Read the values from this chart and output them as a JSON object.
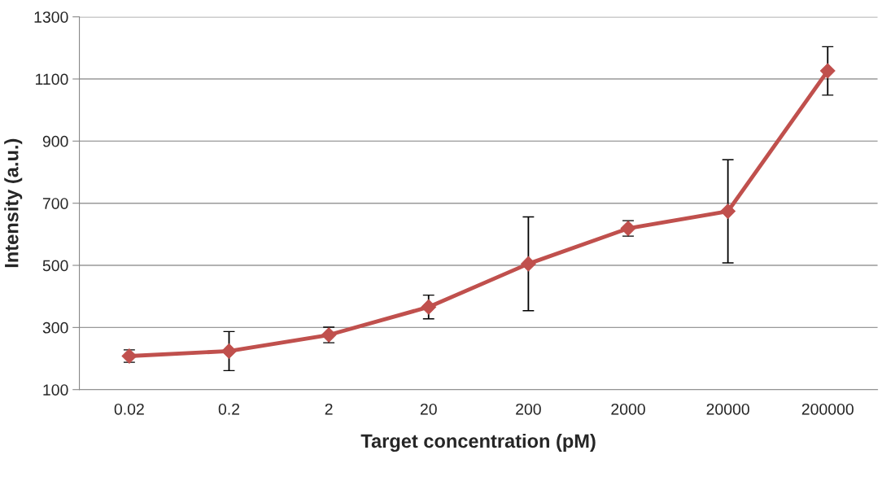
{
  "chart_data": {
    "type": "line",
    "xlabel": "Target concentration (pM)",
    "ylabel": "Intensity (a.u.)",
    "categories": [
      "0.02",
      "0.2",
      "2",
      "20",
      "200",
      "2000",
      "20000",
      "200000"
    ],
    "series": [
      {
        "color": "#c0504d",
        "values": [
          208,
          224,
          276,
          366,
          505,
          619,
          674,
          1126
        ],
        "errors": [
          20,
          63,
          25,
          38,
          151,
          25,
          166,
          78
        ]
      }
    ],
    "ylim": [
      100,
      1300
    ],
    "yticks": [
      100,
      300,
      500,
      700,
      900,
      1100,
      1300
    ],
    "grid": "y",
    "marker": "diamond",
    "line_style": "solid",
    "legend": false
  }
}
